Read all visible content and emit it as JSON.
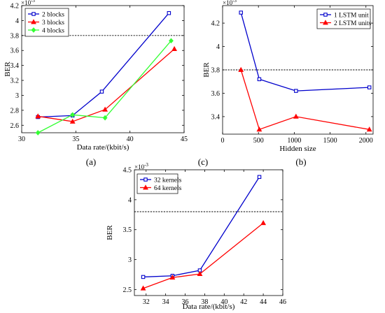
{
  "figure": {
    "subfigure_labels": [
      "(a)",
      "(c)",
      "(b)"
    ]
  },
  "chart_data": [
    {
      "id": "a",
      "type": "line",
      "xlabel": "Data rate/(kbit/s)",
      "ylabel": "BER",
      "multiplier": "×10",
      "multiplier_exp": "-3",
      "xlim": [
        30,
        45
      ],
      "ylim": [
        2.5,
        4.2
      ],
      "xticks": [
        30,
        35,
        40,
        45
      ],
      "yticks": [
        2.6,
        2.8,
        3.0,
        3.2,
        3.4,
        3.6,
        3.8,
        4.0,
        4.2
      ],
      "ytick_labels": [
        "2.6",
        "2.8",
        "3",
        "3.2",
        "3.4",
        "3.6",
        "3.8",
        "4",
        "4.2"
      ],
      "threshold": 3.8,
      "legend_position": "top-left",
      "series": [
        {
          "name": "2 blocks",
          "color": "#0000cc",
          "marker": "square",
          "x": [
            31.5,
            34.7,
            37.4,
            43.6
          ],
          "y": [
            2.71,
            2.73,
            3.05,
            4.1
          ]
        },
        {
          "name": "3 blocks",
          "color": "#ff0000",
          "marker": "triangle",
          "x": [
            31.5,
            34.7,
            37.7,
            44.1
          ],
          "y": [
            2.72,
            2.65,
            2.81,
            3.62
          ]
        },
        {
          "name": "4 blocks",
          "color": "#33ff33",
          "marker": "diamond",
          "x": [
            31.5,
            34.7,
            37.7,
            43.8
          ],
          "y": [
            2.5,
            2.74,
            2.7,
            3.73
          ]
        }
      ]
    },
    {
      "id": "b",
      "type": "line",
      "xlabel": "Hidden size",
      "ylabel": "BER",
      "multiplier": "×10",
      "multiplier_exp": "-3",
      "xlim": [
        0,
        2100
      ],
      "ylim": [
        3.25,
        4.35
      ],
      "xticks": [
        0,
        500,
        1000,
        1500,
        2000
      ],
      "yticks": [
        3.4,
        3.6,
        3.8,
        4.0,
        4.2
      ],
      "ytick_labels": [
        "3.4",
        "3.6",
        "3.8",
        "4",
        "4.2"
      ],
      "threshold": 3.8,
      "legend_position": "top-right",
      "series": [
        {
          "name": "1 LSTM unit",
          "color": "#0000cc",
          "marker": "square",
          "x": [
            256,
            512,
            1024,
            2048
          ],
          "y": [
            4.29,
            3.72,
            3.62,
            3.65
          ]
        },
        {
          "name": "2 LSTM units",
          "color": "#ff0000",
          "marker": "triangle",
          "x": [
            256,
            512,
            1024,
            2048
          ],
          "y": [
            3.8,
            3.29,
            3.4,
            3.29
          ]
        }
      ]
    },
    {
      "id": "c",
      "type": "line",
      "xlabel": "Data rate/(kbit/s)",
      "ylabel": "BER",
      "multiplier": "×10",
      "multiplier_exp": "-3",
      "xlim": [
        30.8,
        46
      ],
      "ylim": [
        2.4,
        4.5
      ],
      "xticks": [
        32,
        34,
        36,
        38,
        40,
        42,
        44,
        46
      ],
      "yticks": [
        2.5,
        3.0,
        3.5,
        4.0,
        4.5
      ],
      "ytick_labels": [
        "2.5",
        "3",
        "3.5",
        "4",
        "4.5"
      ],
      "threshold": 3.8,
      "legend_position": "top-left",
      "series": [
        {
          "name": "32 kernels",
          "color": "#0000cc",
          "marker": "square",
          "x": [
            31.7,
            34.7,
            37.5,
            43.6
          ],
          "y": [
            2.71,
            2.73,
            2.82,
            4.38
          ]
        },
        {
          "name": "64 kernels",
          "color": "#ff0000",
          "marker": "triangle",
          "x": [
            31.7,
            34.7,
            37.5,
            44.0
          ],
          "y": [
            2.52,
            2.7,
            2.76,
            3.61
          ]
        }
      ]
    }
  ]
}
